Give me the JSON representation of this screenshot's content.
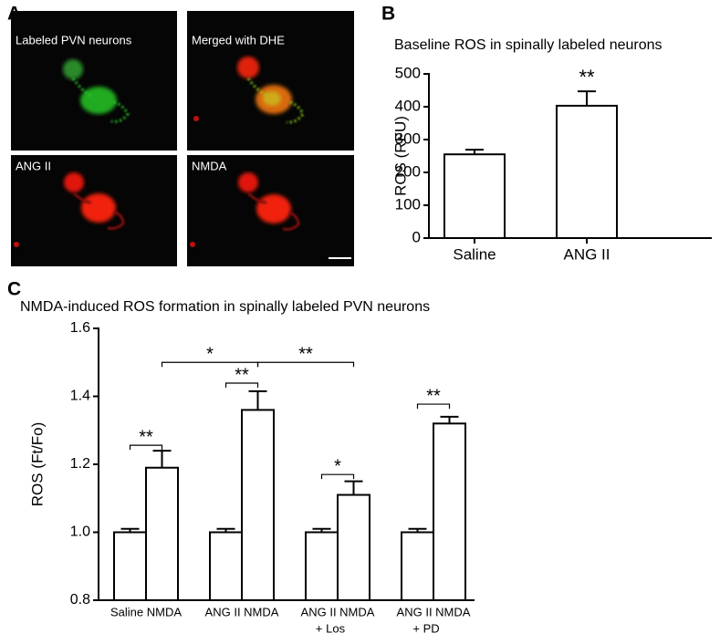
{
  "panel_labels": [
    "A",
    "B",
    "C"
  ],
  "image_labels": [
    "Labeled PVN neurons",
    "Merged with DHE",
    "ANG II",
    "NMDA"
  ],
  "chart_data": [
    {
      "type": "bar",
      "title": "Baseline ROS in spinally labeled neurons",
      "y_label": "ROS (RFU)",
      "categories": [
        "Saline",
        "ANG II"
      ],
      "values": [
        255,
        403
      ],
      "errors": [
        14,
        44
      ],
      "color": "#ffffff",
      "edge_color": "#000000",
      "ylim": [
        0,
        500
      ],
      "yticks": [
        0,
        100,
        200,
        300,
        400,
        500
      ],
      "annotations": [
        {
          "label": "**",
          "category": 1
        }
      ]
    },
    {
      "type": "grouped_bar",
      "title": "NMDA-induced ROS formation in spinally labeled PVN neurons",
      "y_label": "ROS (Ft/Fo)",
      "categories": [
        "Saline NMDA",
        "ANG II NMDA",
        "ANG II NMDA",
        "ANG II NMDA"
      ],
      "category_sublabels": [
        null,
        null,
        "+ Los",
        "+ PD"
      ],
      "series": [
        {
          "color": "#ffffff",
          "values": [
            1.0,
            1.0,
            1.0,
            1.0
          ],
          "errors": [
            0.01,
            0.01,
            0.01,
            0.01
          ]
        },
        {
          "color": "#ffffff",
          "values": [
            1.19,
            1.36,
            1.11,
            1.32
          ],
          "errors": [
            0.05,
            0.055,
            0.04,
            0.02
          ]
        }
      ],
      "edge_color": "#000000",
      "ylim": [
        0.8,
        1.6
      ],
      "yticks": [
        0.8,
        {
          "value": 1.0,
          "label": "1.0"
        },
        1.2,
        1.4,
        1.6
      ],
      "brackets": [
        {
          "label": "**",
          "from": [
            0,
            0
          ],
          "to": [
            1,
            0
          ],
          "y": 1.256
        },
        {
          "label": "**",
          "from": [
            0,
            1
          ],
          "to": [
            1,
            1
          ],
          "y": 1.439
        },
        {
          "label": "*",
          "from": [
            1,
            0
          ],
          "to": [
            1,
            1
          ],
          "y": 1.5
        },
        {
          "label": "**",
          "from": [
            1,
            1
          ],
          "to": [
            1,
            2
          ],
          "y": 1.5
        },
        {
          "label": "*",
          "from": [
            0,
            2
          ],
          "to": [
            1,
            2
          ],
          "y": 1.17
        },
        {
          "label": "**",
          "from": [
            0,
            3
          ],
          "to": [
            1,
            3
          ],
          "y": 1.377
        }
      ]
    }
  ]
}
